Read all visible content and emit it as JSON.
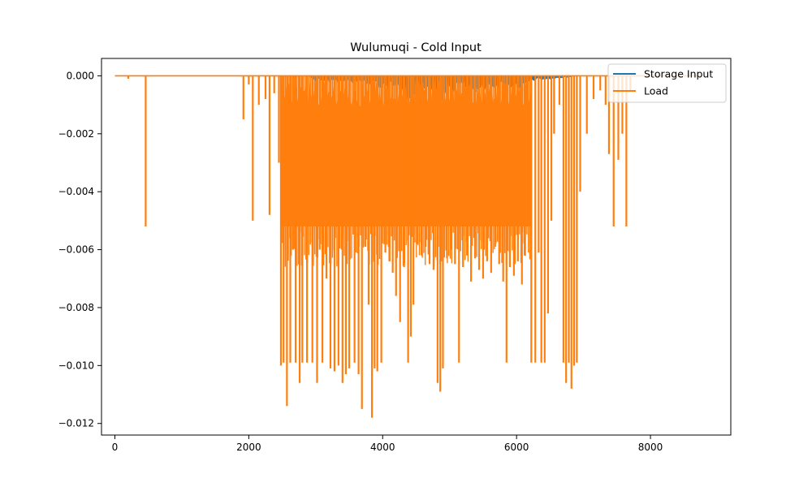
{
  "chart_data": {
    "type": "line",
    "title": "Wulumuqi - Cold Input",
    "xlabel": "",
    "ylabel": "",
    "xlim": [
      -200,
      9200
    ],
    "ylim": [
      -0.0124,
      0.0006
    ],
    "x_ticks": [
      0,
      2000,
      4000,
      6000,
      8000
    ],
    "x_tick_labels": [
      "0",
      "2000",
      "4000",
      "6000",
      "8000"
    ],
    "y_ticks": [
      0.0,
      -0.002,
      -0.004,
      -0.006,
      -0.008,
      -0.01,
      -0.012
    ],
    "y_tick_labels": [
      "0.000",
      "−0.002",
      "−0.004",
      "−0.006",
      "−0.008",
      "−0.010",
      "−0.012"
    ],
    "grid": false,
    "legend_position": "top-right",
    "x_range": [
      0,
      8760
    ],
    "series": [
      {
        "name": "Storage Input",
        "color": "#1f77b4",
        "envelope": [
          [
            0,
            0
          ],
          [
            2900,
            0
          ],
          [
            3000,
            -0.0002
          ],
          [
            3200,
            -0.0002
          ],
          [
            3400,
            -0.0003
          ],
          [
            3600,
            -0.0002
          ],
          [
            3800,
            -0.0004
          ],
          [
            4000,
            -0.0005
          ],
          [
            4200,
            -0.0004
          ],
          [
            4400,
            -0.0011
          ],
          [
            4500,
            -0.0007
          ],
          [
            4700,
            -0.0006
          ],
          [
            4850,
            -0.001
          ],
          [
            5000,
            -0.0006
          ],
          [
            5200,
            -0.0004
          ],
          [
            5400,
            -0.0006
          ],
          [
            5600,
            -0.0004
          ],
          [
            5800,
            -0.0005
          ],
          [
            6000,
            -0.0004
          ],
          [
            6100,
            -0.0006
          ],
          [
            6200,
            -0.0002
          ],
          [
            6600,
            -0.0001
          ],
          [
            6900,
            0
          ],
          [
            8760,
            0
          ]
        ]
      },
      {
        "name": "Load",
        "color": "#ff7f0e",
        "spikes": [
          [
            200,
            -0.0001
          ],
          [
            460,
            -0.0052
          ],
          [
            1920,
            -0.0015
          ],
          [
            2000,
            -0.0003
          ],
          [
            2060,
            -0.005
          ],
          [
            2150,
            -0.001
          ],
          [
            2250,
            -0.0008
          ],
          [
            2310,
            -0.0048
          ],
          [
            2380,
            -0.0006
          ],
          [
            2450,
            -0.003
          ],
          [
            2480,
            -0.01
          ],
          [
            2520,
            -0.0099
          ],
          [
            2570,
            -0.0114
          ],
          [
            2620,
            -0.0099
          ],
          [
            2660,
            -0.006
          ],
          [
            2700,
            -0.0099
          ],
          [
            2760,
            -0.0106
          ],
          [
            2800,
            -0.0099
          ],
          [
            2870,
            -0.0099
          ],
          [
            2950,
            -0.0099
          ],
          [
            3020,
            -0.0106
          ],
          [
            3060,
            -0.006
          ],
          [
            3100,
            -0.0099
          ],
          [
            3160,
            -0.007
          ],
          [
            3220,
            -0.0101
          ],
          [
            3280,
            -0.0102
          ],
          [
            3340,
            -0.01
          ],
          [
            3400,
            -0.0106
          ],
          [
            3450,
            -0.0103
          ],
          [
            3500,
            -0.0101
          ],
          [
            3580,
            -0.0099
          ],
          [
            3640,
            -0.0103
          ],
          [
            3690,
            -0.0115
          ],
          [
            3740,
            -0.0059
          ],
          [
            3790,
            -0.0079
          ],
          [
            3840,
            -0.0118
          ],
          [
            3880,
            -0.0101
          ],
          [
            3920,
            -0.0102
          ],
          [
            3980,
            -0.0099
          ],
          [
            4040,
            -0.0061
          ],
          [
            4100,
            -0.0064
          ],
          [
            4150,
            -0.0068
          ],
          [
            4200,
            -0.0076
          ],
          [
            4260,
            -0.0085
          ],
          [
            4320,
            -0.0066
          ],
          [
            4380,
            -0.0099
          ],
          [
            4420,
            -0.009
          ],
          [
            4460,
            -0.0079
          ],
          [
            4520,
            -0.0058
          ],
          [
            4580,
            -0.0062
          ],
          [
            4640,
            -0.0059
          ],
          [
            4700,
            -0.0065
          ],
          [
            4760,
            -0.0067
          ],
          [
            4820,
            -0.0106
          ],
          [
            4860,
            -0.0109
          ],
          [
            4900,
            -0.0101
          ],
          [
            4960,
            -0.0063
          ],
          [
            5020,
            -0.006
          ],
          [
            5080,
            -0.0065
          ],
          [
            5140,
            -0.0099
          ],
          [
            5200,
            -0.0066
          ],
          [
            5260,
            -0.0062
          ],
          [
            5320,
            -0.0071
          ],
          [
            5380,
            -0.0063
          ],
          [
            5440,
            -0.0067
          ],
          [
            5500,
            -0.007
          ],
          [
            5560,
            -0.0064
          ],
          [
            5620,
            -0.0068
          ],
          [
            5680,
            -0.0059
          ],
          [
            5740,
            -0.0065
          ],
          [
            5800,
            -0.0071
          ],
          [
            5850,
            -0.0099
          ],
          [
            5900,
            -0.0066
          ],
          [
            5960,
            -0.0069
          ],
          [
            6020,
            -0.0064
          ],
          [
            6080,
            -0.0072
          ],
          [
            6120,
            -0.0062
          ],
          [
            6160,
            -0.0035
          ],
          [
            6220,
            -0.0099
          ],
          [
            6280,
            -0.0099
          ],
          [
            6330,
            -0.0061
          ],
          [
            6370,
            -0.0099
          ],
          [
            6420,
            -0.0099
          ],
          [
            6470,
            -0.0082
          ],
          [
            6520,
            -0.005
          ],
          [
            6560,
            -0.002
          ],
          [
            6640,
            -0.001
          ],
          [
            6700,
            -0.0099
          ],
          [
            6740,
            -0.0106
          ],
          [
            6780,
            -0.0099
          ],
          [
            6820,
            -0.0108
          ],
          [
            6860,
            -0.01
          ],
          [
            6900,
            -0.0099
          ],
          [
            6950,
            -0.004
          ],
          [
            7050,
            -0.002
          ],
          [
            7150,
            -0.0008
          ],
          [
            7250,
            -0.0005
          ],
          [
            7330,
            -0.001
          ],
          [
            7380,
            -0.0027
          ],
          [
            7450,
            -0.0052
          ],
          [
            7520,
            -0.0029
          ],
          [
            7580,
            -0.002
          ],
          [
            7640,
            -0.0052
          ],
          [
            7700,
            -0.0005
          ]
        ],
        "band": [
          2480,
          6220
        ],
        "band_floor": -0.0052
      }
    ]
  }
}
